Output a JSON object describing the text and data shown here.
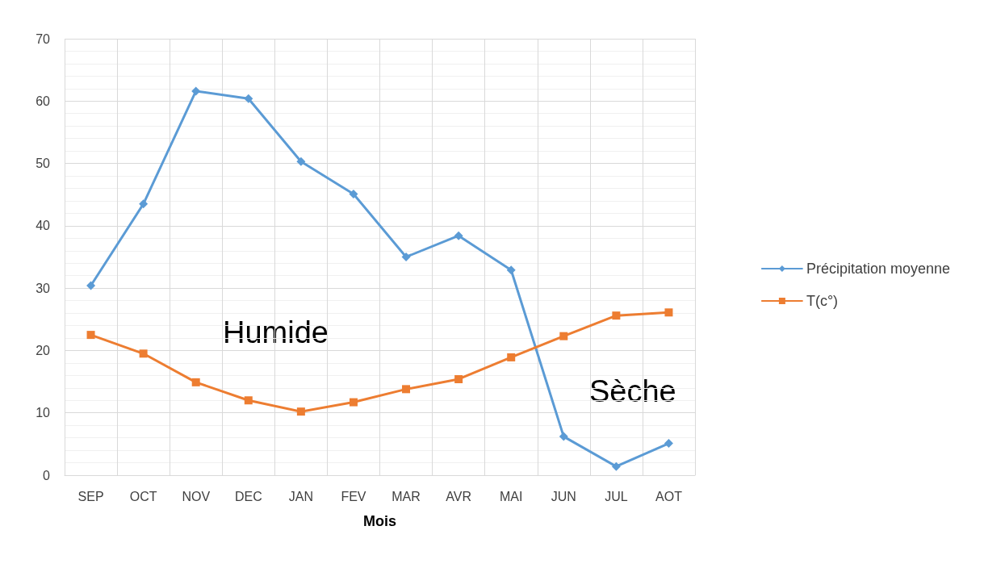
{
  "chart_data": {
    "type": "line",
    "xlabel": "Mois",
    "categories": [
      "SEP",
      "OCT",
      "NOV",
      "DEC",
      "JAN",
      "FEV",
      "MAR",
      "AVR",
      "MAI",
      "JUN",
      "JUL",
      "AOT"
    ],
    "series": [
      {
        "name": "Précipitation moyenne",
        "color": "#5b9bd5",
        "marker": "diamond",
        "values": [
          30.4,
          43.5,
          61.6,
          60.4,
          50.3,
          45.1,
          35,
          38.4,
          32.9,
          6.2,
          1.4,
          5.1
        ]
      },
      {
        "name": "T(c°)",
        "color": "#ed7d31",
        "marker": "square",
        "values": [
          22.5,
          19.5,
          14.9,
          12,
          10.2,
          11.7,
          13.8,
          15.4,
          18.9,
          22.3,
          25.6,
          26.1
        ]
      }
    ],
    "ylim": [
      0,
      70
    ],
    "yticks": [
      0,
      10,
      20,
      30,
      40,
      50,
      60,
      70
    ],
    "grid": true,
    "legend": "right",
    "line_style": "solid",
    "annotations": [
      "Humide",
      "Sèche"
    ]
  }
}
